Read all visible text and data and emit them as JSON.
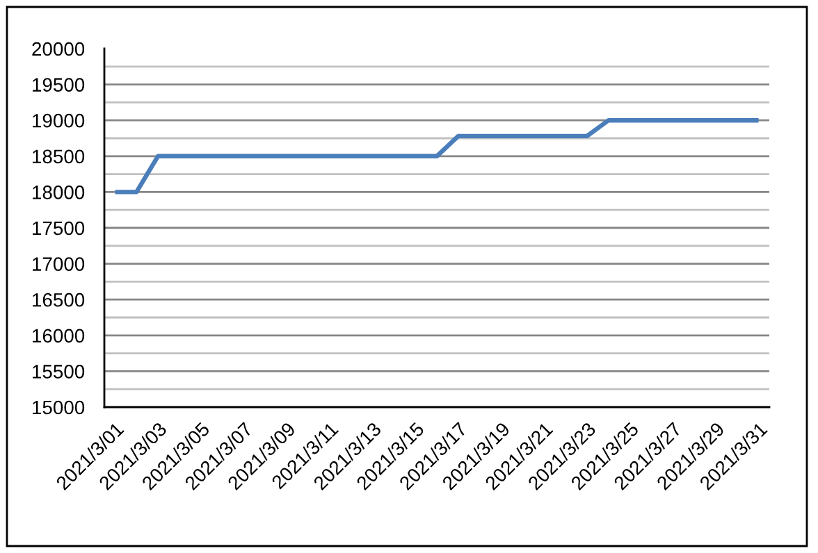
{
  "chart_data": {
    "type": "line",
    "categories": [
      "2021/3/01",
      null,
      "2021/3/03",
      null,
      "2021/3/05",
      null,
      "2021/3/07",
      null,
      "2021/3/09",
      null,
      "2021/3/11",
      null,
      "2021/3/13",
      null,
      "2021/3/15",
      null,
      "2021/3/17",
      null,
      "2021/3/19",
      null,
      "2021/3/21",
      null,
      "2021/3/23",
      null,
      "2021/3/25",
      null,
      "2021/3/27",
      null,
      "2021/3/29",
      null,
      "2021/3/31"
    ],
    "values": [
      18000,
      18000,
      18500,
      18500,
      18500,
      18500,
      18500,
      18500,
      18500,
      18500,
      18500,
      18500,
      18500,
      18500,
      18500,
      18500,
      18780,
      18780,
      18780,
      18780,
      18780,
      18780,
      18780,
      19000,
      19000,
      19000,
      19000,
      19000,
      19000,
      19000,
      19000
    ],
    "color": "#4a7ebb",
    "ylim": [
      15000,
      20000
    ],
    "yticks": [
      15000,
      {
        "value": 15250,
        "label": null
      },
      15500,
      {
        "value": 15750,
        "label": null
      },
      16000,
      {
        "value": 16250,
        "label": null
      },
      16500,
      {
        "value": 16750,
        "label": null
      },
      17000,
      {
        "value": 17250,
        "label": null
      },
      17500,
      {
        "value": 17750,
        "label": null
      },
      18000,
      {
        "value": 18250,
        "label": null
      },
      18500,
      {
        "value": 18750,
        "label": null
      },
      19000,
      {
        "value": 19250,
        "label": null
      },
      19500,
      {
        "value": 19750,
        "label": null
      },
      20000
    ],
    "grid": "y",
    "legend": false,
    "marker": "none",
    "line_style": "solid"
  }
}
